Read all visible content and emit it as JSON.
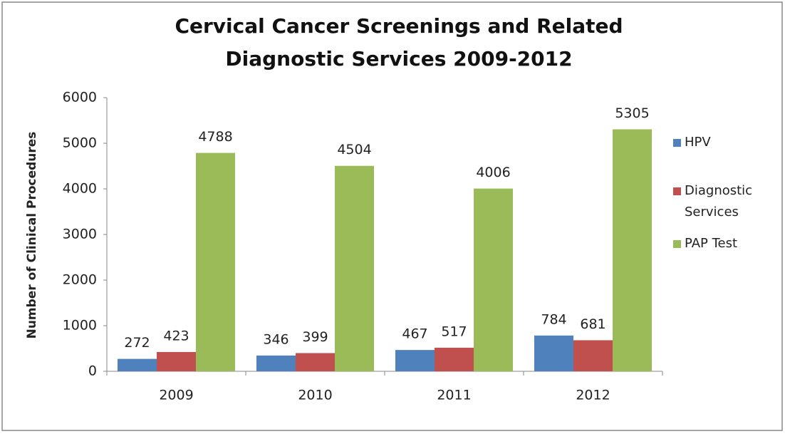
{
  "chart_data": {
    "type": "bar",
    "title": "Cervical Cancer Screenings and Related Diagnostic Services 2009-2012",
    "y_label": "Number of Clinical Procedures",
    "categories": [
      "2009",
      "2010",
      "2011",
      "2012"
    ],
    "series": [
      {
        "name": "HPV",
        "color": "#4f81bd",
        "values": [
          272,
          346,
          467,
          784
        ]
      },
      {
        "name": "Diagnostic Services",
        "color": "#c0504d",
        "values": [
          423,
          399,
          517,
          681
        ]
      },
      {
        "name": "PAP Test",
        "color": "#9bbb59",
        "values": [
          4788,
          4504,
          4006,
          5305
        ]
      }
    ],
    "ylim": [
      0,
      6000
    ],
    "yticks": [
      0,
      1000,
      2000,
      3000,
      4000,
      5000,
      6000
    ],
    "grid": false,
    "legend": "right"
  }
}
